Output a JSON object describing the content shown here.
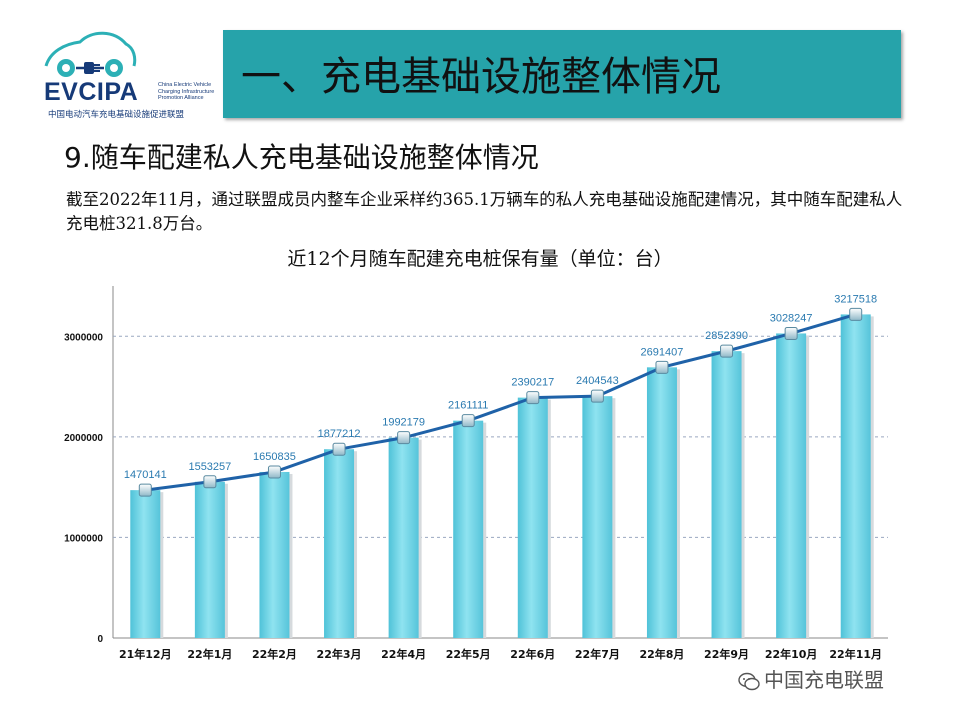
{
  "logo": {
    "name": "EVCIPA",
    "english_lines": [
      "China Electric Vehicle",
      "Charging Infrastructure",
      "Promotion Alliance"
    ],
    "chinese": "中国电动汽车充电基础设施促进联盟"
  },
  "header": {
    "title": "一、充电基础设施整体情况"
  },
  "section": {
    "title": "9.随车配建私人充电基础设施整体情况",
    "description": "截至2022年11月，通过联盟成员内整车企业采样约365.1万辆车的私人充电基础设施配建情况，其中随车配建私人充电桩321.8万台。"
  },
  "watermark": {
    "text": "中国充电联盟"
  },
  "chart_data": {
    "type": "bar",
    "title": "近12个月随车配建充电桩保有量（单位：台）",
    "categories": [
      "21年12月",
      "22年1月",
      "22年2月",
      "22年3月",
      "22年4月",
      "22年5月",
      "22年6月",
      "22年7月",
      "22年8月",
      "22年9月",
      "22年10月",
      "22年11月"
    ],
    "values": [
      1470141,
      1553257,
      1650835,
      1877212,
      1992179,
      2161111,
      2390217,
      2404543,
      2691407,
      2852390,
      3028247,
      3217518
    ],
    "overlay": "line-with-markers",
    "ylim": [
      0,
      3500000
    ],
    "yticks": [
      0,
      1000000,
      2000000,
      3000000
    ],
    "xlabel": "",
    "ylabel": "",
    "grid": "horizontal-dashed",
    "bar_color": "#73d3e6",
    "line_color": "#1f62a8",
    "label_color": "#2a7ab0"
  }
}
